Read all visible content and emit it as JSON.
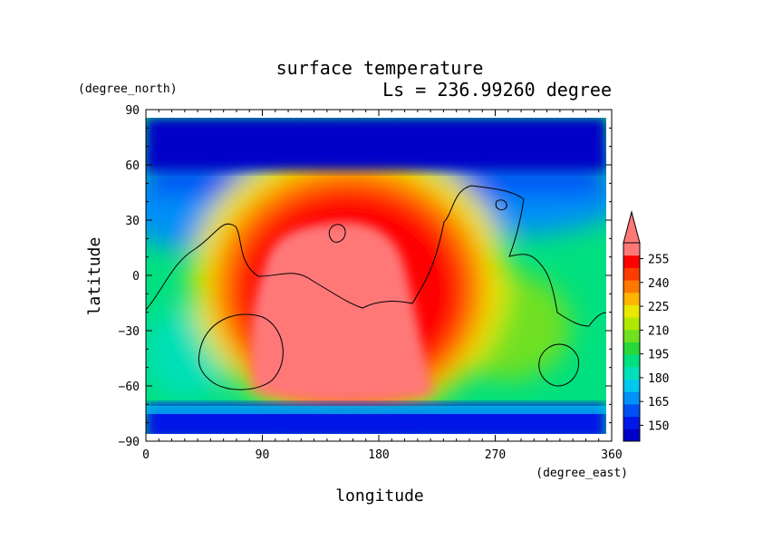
{
  "chart_data": {
    "type": "heatmap",
    "title": "surface temperature",
    "subtitle": "Ls = 236.99260 degree",
    "xlabel": "longitude",
    "ylabel": "latitude",
    "x_units": "(degree_east)",
    "y_units": "(degree_north)",
    "xlim": [
      0,
      360
    ],
    "ylim": [
      -90,
      90
    ],
    "x_ticks": [
      "0",
      "90",
      "180",
      "270",
      "360"
    ],
    "y_ticks": [
      "90",
      "60",
      "30",
      "0",
      "−30",
      "−60",
      "−90"
    ],
    "colorbar": {
      "levels": [
        "255",
        "240",
        "225",
        "210",
        "195",
        "180",
        "165",
        "150"
      ],
      "min": 140,
      "max": 265,
      "extend_max": true,
      "colors": [
        "#0000c8",
        "#0018e6",
        "#0050f5",
        "#0090f8",
        "#00c8f0",
        "#00e0b8",
        "#00e080",
        "#28d838",
        "#70e020",
        "#b0e800",
        "#e8e800",
        "#ffb400",
        "#ff7800",
        "#ff3c00",
        "#ff0000",
        "#ff7878"
      ]
    },
    "field_summary": {
      "warm_core_min": 255,
      "north_polar_cap": 145,
      "south_polar_cap": 145,
      "south_cap_edge_latitude": -72,
      "north_cap_edge_latitude": 55,
      "data_latitude_range": [
        -87,
        86
      ]
    }
  }
}
